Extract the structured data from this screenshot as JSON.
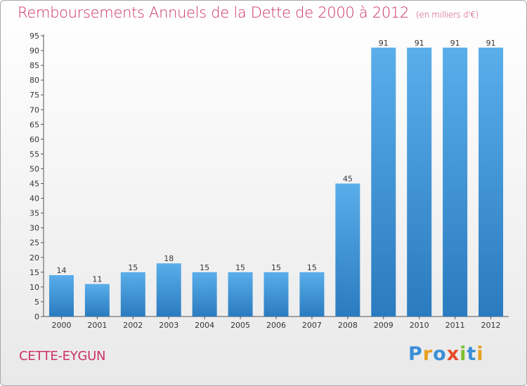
{
  "chart_data": {
    "type": "bar",
    "title": "Remboursements Annuels de la Dette de 2000 à 2012",
    "unit_label": "(en milliers d'€)",
    "xlabel": "",
    "ylabel": "",
    "categories": [
      "2000",
      "2001",
      "2002",
      "2003",
      "2004",
      "2005",
      "2006",
      "2007",
      "2008",
      "2009",
      "2010",
      "2011",
      "2012"
    ],
    "values": [
      14,
      11,
      15,
      18,
      15,
      15,
      15,
      15,
      45,
      91,
      91,
      91,
      91
    ],
    "ylim": [
      0,
      95
    ],
    "yticks": [
      0,
      5,
      10,
      15,
      20,
      25,
      30,
      35,
      40,
      45,
      50,
      55,
      60,
      65,
      70,
      75,
      80,
      85,
      90,
      95
    ],
    "grid": false,
    "legend": "none",
    "colors": {
      "bar_top": "#5aaeea",
      "bar_bottom": "#2a7bbf",
      "title": "#cc3366"
    }
  },
  "footer": {
    "commune": "CETTE-EYGUN",
    "brand": "Proxiti",
    "brand_letters": [
      {
        "ch": "P",
        "color": "#3a8fd6"
      },
      {
        "ch": "r",
        "color": "#e8a020"
      },
      {
        "ch": "o",
        "color": "#3a8fd6"
      },
      {
        "ch": "x",
        "color": "#e84a2a"
      },
      {
        "ch": "i",
        "color": "#7cbf2e"
      },
      {
        "ch": "t",
        "color": "#3a8fd6"
      },
      {
        "ch": "i",
        "color": "#e8a020"
      }
    ]
  }
}
